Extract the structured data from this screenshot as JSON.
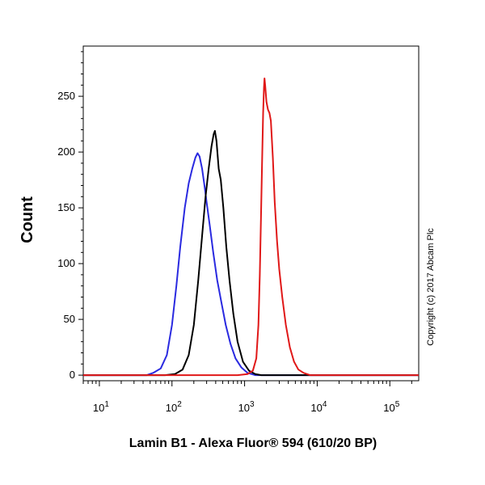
{
  "chart_data": {
    "type": "line",
    "xlabel": "Lamin B1 - Alexa Fluor® 594 (610/20 BP)",
    "ylabel": "Count",
    "x_scale": "log",
    "xlim": [
      6,
      250000
    ],
    "ylim": [
      -5,
      295
    ],
    "y_ticks": [
      0,
      50,
      100,
      150,
      200,
      250
    ],
    "x_ticks": [
      {
        "value": 10,
        "base": "10",
        "exp": "1"
      },
      {
        "value": 100,
        "base": "10",
        "exp": "2"
      },
      {
        "value": 1000,
        "base": "10",
        "exp": "3"
      },
      {
        "value": 10000,
        "base": "10",
        "exp": "4"
      },
      {
        "value": 100000,
        "base": "10",
        "exp": "5"
      }
    ],
    "grid": false,
    "legend": "none",
    "series": [
      {
        "color": "#2a2ae0",
        "points": [
          [
            6,
            0
          ],
          [
            30,
            0
          ],
          [
            45,
            0
          ],
          [
            55,
            2
          ],
          [
            70,
            6
          ],
          [
            85,
            18
          ],
          [
            100,
            45
          ],
          [
            115,
            80
          ],
          [
            130,
            115
          ],
          [
            150,
            150
          ],
          [
            170,
            172
          ],
          [
            190,
            185
          ],
          [
            210,
            195
          ],
          [
            225,
            199
          ],
          [
            240,
            196
          ],
          [
            260,
            185
          ],
          [
            280,
            170
          ],
          [
            300,
            155
          ],
          [
            330,
            135
          ],
          [
            370,
            110
          ],
          [
            420,
            85
          ],
          [
            480,
            65
          ],
          [
            550,
            45
          ],
          [
            640,
            28
          ],
          [
            750,
            15
          ],
          [
            900,
            7
          ],
          [
            1100,
            2
          ],
          [
            1400,
            0
          ],
          [
            250000,
            0
          ]
        ]
      },
      {
        "color": "#000000",
        "points": [
          [
            6,
            0
          ],
          [
            80,
            0
          ],
          [
            110,
            1
          ],
          [
            140,
            5
          ],
          [
            170,
            18
          ],
          [
            200,
            45
          ],
          [
            230,
            85
          ],
          [
            260,
            125
          ],
          [
            290,
            160
          ],
          [
            320,
            185
          ],
          [
            350,
            205
          ],
          [
            375,
            216
          ],
          [
            390,
            219
          ],
          [
            410,
            210
          ],
          [
            440,
            185
          ],
          [
            470,
            175
          ],
          [
            510,
            150
          ],
          [
            560,
            115
          ],
          [
            620,
            85
          ],
          [
            700,
            55
          ],
          [
            800,
            30
          ],
          [
            950,
            12
          ],
          [
            1150,
            4
          ],
          [
            1400,
            1
          ],
          [
            1700,
            0
          ],
          [
            250000,
            0
          ]
        ]
      },
      {
        "color": "#e01818",
        "points": [
          [
            6,
            0
          ],
          [
            800,
            0
          ],
          [
            1100,
            1
          ],
          [
            1300,
            4
          ],
          [
            1450,
            15
          ],
          [
            1550,
            45
          ],
          [
            1620,
            90
          ],
          [
            1680,
            140
          ],
          [
            1740,
            190
          ],
          [
            1800,
            235
          ],
          [
            1850,
            258
          ],
          [
            1880,
            266
          ],
          [
            1920,
            260
          ],
          [
            2000,
            245
          ],
          [
            2100,
            238
          ],
          [
            2200,
            235
          ],
          [
            2300,
            228
          ],
          [
            2450,
            195
          ],
          [
            2600,
            155
          ],
          [
            2800,
            120
          ],
          [
            3000,
            95
          ],
          [
            3300,
            70
          ],
          [
            3700,
            45
          ],
          [
            4200,
            25
          ],
          [
            4800,
            12
          ],
          [
            5500,
            5
          ],
          [
            6500,
            2
          ],
          [
            8000,
            0
          ],
          [
            250000,
            0
          ]
        ]
      }
    ]
  },
  "copyright": "Copyright (c) 2017 Abcam Plc"
}
